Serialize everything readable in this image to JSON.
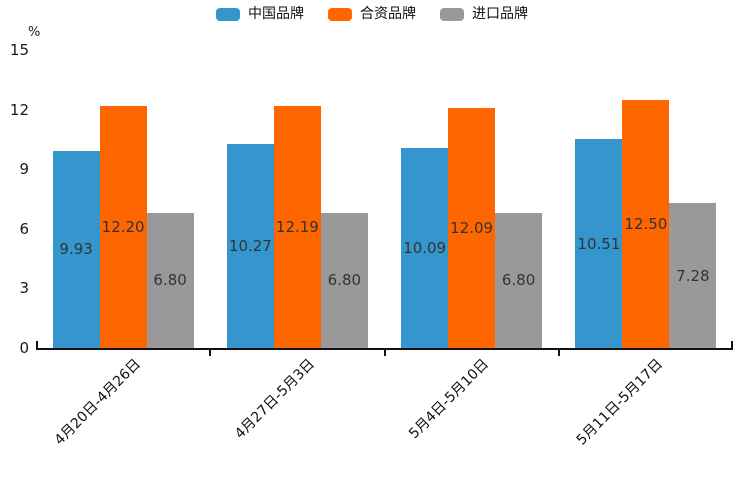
{
  "chart": {
    "unit_label": "%"
  },
  "chart_data": {
    "type": "bar",
    "title": "",
    "categories": [
      "4月20日-4月26日",
      "4月27日-5月3日",
      "5月4日-5月10日",
      "5月11日-5月17日"
    ],
    "series": [
      {
        "name": "中国品牌",
        "color": "#3596CE",
        "values": [
          9.93,
          10.27,
          10.09,
          10.51
        ],
        "labels": [
          "9.93",
          "10.27",
          "10.09",
          "10.51"
        ]
      },
      {
        "name": "合资品牌",
        "color": "#FF6600",
        "values": [
          12.2,
          12.19,
          12.09,
          12.5
        ],
        "labels": [
          "12.20",
          "12.19",
          "12.09",
          "12.50"
        ]
      },
      {
        "name": "进口品牌",
        "color": "#999999",
        "values": [
          6.8,
          6.8,
          6.8,
          7.28
        ],
        "labels": [
          "6.80",
          "6.80",
          "6.80",
          "7.28"
        ]
      }
    ],
    "xlabel": "",
    "ylabel": "%",
    "ylim": [
      0,
      15
    ],
    "yticks": [
      "0",
      "3",
      "6",
      "9",
      "12",
      "15"
    ],
    "legend_position": "top",
    "grid": false,
    "bar_value_color": "#333333",
    "axis_color": "#111111"
  }
}
